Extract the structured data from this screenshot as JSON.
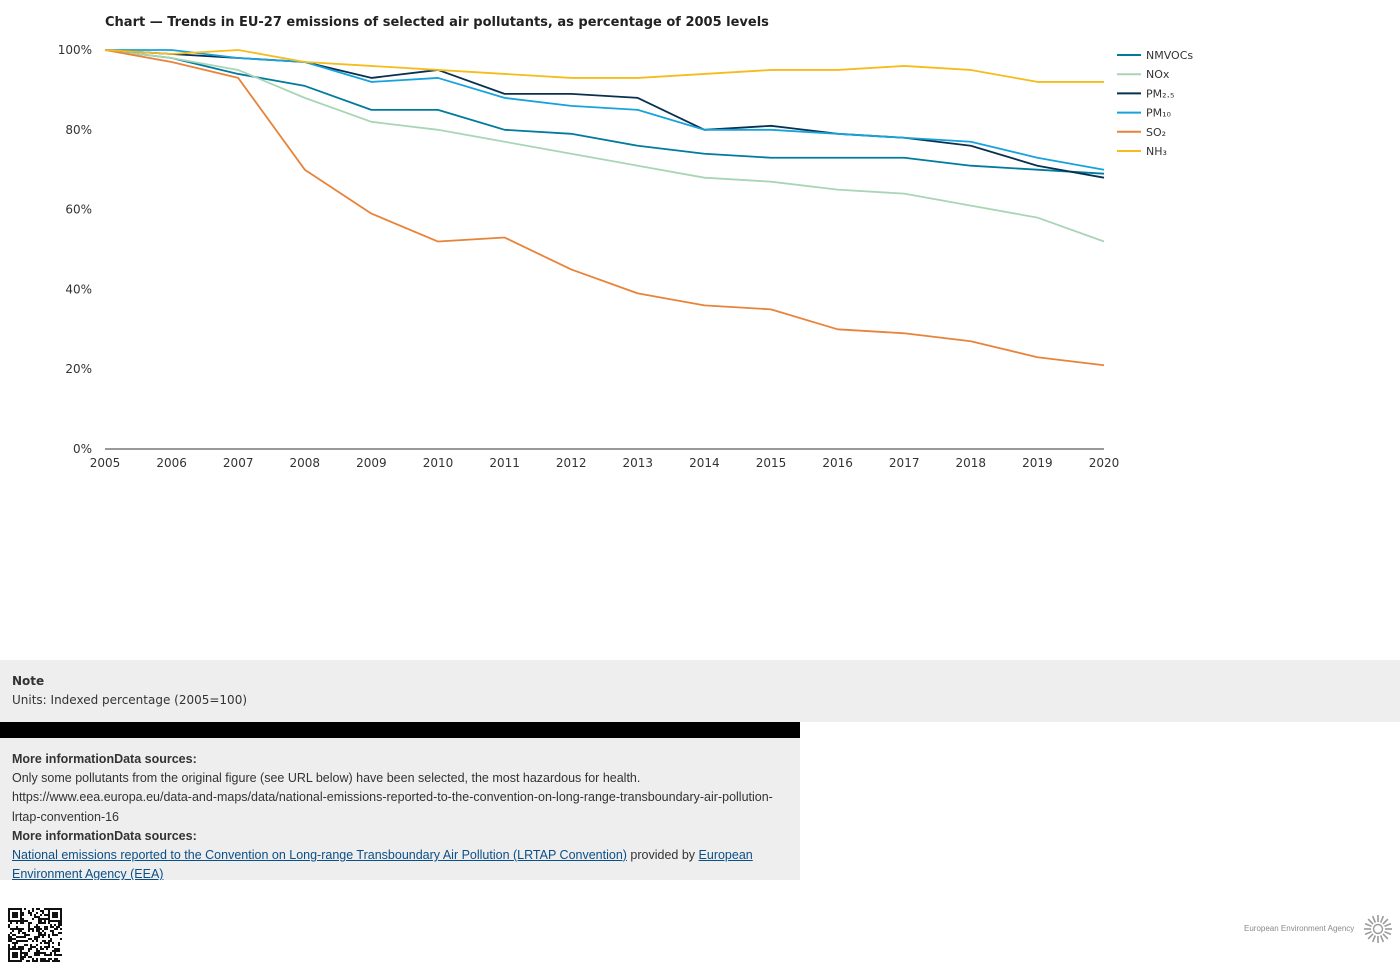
{
  "chart_title": "Chart — Trends in EU-27 emissions of selected air pollutants, as percentage of 2005 levels",
  "chart_data": {
    "type": "line",
    "title": "Chart — Trends in EU-27 emissions of selected air pollutants, as percentage of 2005 levels",
    "xlabel": "",
    "ylabel": "",
    "x": [
      2005,
      2006,
      2007,
      2008,
      2009,
      2010,
      2011,
      2012,
      2013,
      2014,
      2015,
      2016,
      2017,
      2018,
      2019,
      2020
    ],
    "x_tick_labels": [
      "2005",
      "2006",
      "2007",
      "2008",
      "2009",
      "2010",
      "2011",
      "2012",
      "2013",
      "2014",
      "2015",
      "2016",
      "2017",
      "2018",
      "2019",
      "2020"
    ],
    "y_tick_labels": [
      "0%",
      "20%",
      "40%",
      "60%",
      "80%",
      "100%"
    ],
    "y_ticks": [
      0,
      20,
      40,
      60,
      80,
      100
    ],
    "ylim": [
      0,
      100
    ],
    "xlim": [
      2005,
      2020
    ],
    "grid": false,
    "legend_position": "top-right",
    "series": [
      {
        "name": "NMVOCs",
        "color": "#007b9e",
        "values": [
          100,
          98,
          94,
          91,
          85,
          85,
          80,
          79,
          76,
          74,
          73,
          73,
          73,
          71,
          70,
          69
        ]
      },
      {
        "name": "NOx",
        "color": "#a8d5b5",
        "values": [
          100,
          98,
          95,
          88,
          82,
          80,
          77,
          74,
          71,
          68,
          67,
          65,
          64,
          61,
          58,
          52
        ]
      },
      {
        "name": "PM₂.₅",
        "color": "#08304f",
        "values": [
          100,
          99,
          98,
          97,
          93,
          95,
          89,
          89,
          88,
          80,
          81,
          79,
          78,
          76,
          71,
          68
        ]
      },
      {
        "name": "PM₁₀",
        "color": "#18a2dc",
        "values": [
          100,
          100,
          98,
          97,
          92,
          93,
          88,
          86,
          85,
          80,
          80,
          79,
          78,
          77,
          73,
          70
        ]
      },
      {
        "name": "SO₂",
        "color": "#e8833a",
        "values": [
          100,
          97,
          93,
          70,
          59,
          52,
          53,
          45,
          39,
          36,
          35,
          30,
          29,
          27,
          23,
          21
        ]
      },
      {
        "name": "NH₃",
        "color": "#f5bc1c",
        "values": [
          100,
          99,
          100,
          97,
          96,
          95,
          94,
          93,
          93,
          94,
          95,
          95,
          96,
          95,
          92,
          92
        ]
      }
    ]
  },
  "note": {
    "heading": "Note",
    "text": "Units: Indexed percentage (2005=100)"
  },
  "info": {
    "heading_1": "More informationData sources:",
    "text_1": "Only some pollutants from the original figure (see URL below) have been selected, the most  hazardous for health.",
    "url_text": "https://www.eea.europa.eu/data-and-maps/data/national-emissions-reported-to-the-convention-on-long-range-transboundary-air-pollution-lrtap-convention-16",
    "heading_2": "More informationData sources:",
    "source_link": "National emissions reported to the Convention on Long-range Transboundary Air Pollution (LRTAP Convention)",
    "provided_by": " provided by ",
    "provider_link": "European Environment Agency (EEA)"
  },
  "footer": {
    "logo_text": "European Environment Agency",
    "qr_icon": "qr-code-icon",
    "logo_icon": "eea-sun-icon"
  }
}
